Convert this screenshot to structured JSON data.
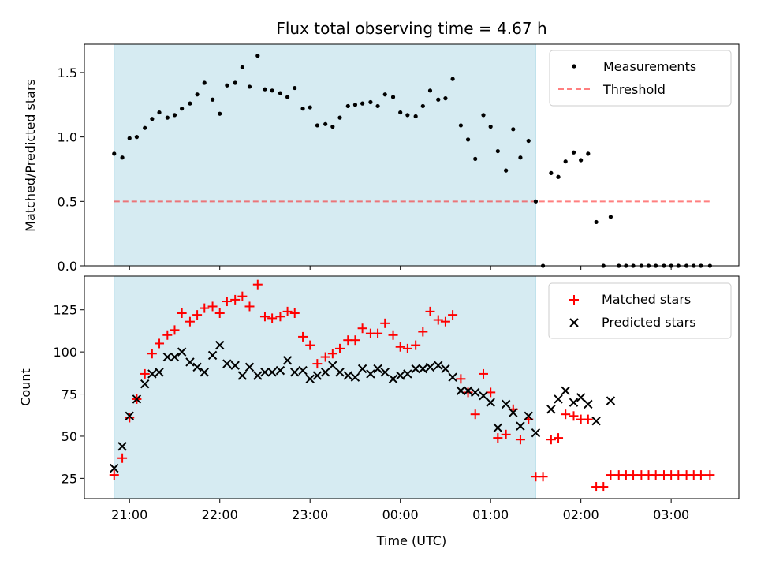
{
  "chart_data": {
    "type": "scatter",
    "title": "Flux total observing time = 4.67 h",
    "xlabel": "Time (UTC)",
    "x_ticks": [
      "21:00",
      "22:00",
      "23:00",
      "00:00",
      "01:00",
      "02:00",
      "03:00"
    ],
    "x_tick_hours": [
      21,
      22,
      23,
      24,
      25,
      26,
      27
    ],
    "xlim": [
      20.5,
      27.75
    ],
    "shaded_span": [
      20.83,
      25.5
    ],
    "colors": {
      "shade": "#add8e6",
      "threshold": "#ff0000",
      "matched": "#ff0000",
      "predicted": "#000000",
      "measurements": "#000000"
    },
    "panels": [
      {
        "id": "ratio",
        "ylabel": "Matched/Predicted stars",
        "ylim": [
          0,
          1.72
        ],
        "y_ticks": [
          0.0,
          0.5,
          1.0,
          1.5
        ],
        "y_tick_labels": [
          "0.0",
          "0.5",
          "1.0",
          "1.5"
        ],
        "legend": {
          "position": "top-right",
          "entries": [
            "Measurements",
            "Threshold"
          ]
        },
        "threshold": {
          "name": "Threshold",
          "y": 0.5,
          "x": [
            20.83,
            27.43
          ]
        },
        "series": [
          {
            "name": "Measurements",
            "marker": "dot",
            "points": [
              [
                20.83,
                0.87
              ],
              [
                20.92,
                0.84
              ],
              [
                21.0,
                0.99
              ],
              [
                21.08,
                1.0
              ],
              [
                21.17,
                1.07
              ],
              [
                21.25,
                1.14
              ],
              [
                21.33,
                1.19
              ],
              [
                21.42,
                1.15
              ],
              [
                21.5,
                1.17
              ],
              [
                21.58,
                1.22
              ],
              [
                21.67,
                1.26
              ],
              [
                21.75,
                1.33
              ],
              [
                21.83,
                1.42
              ],
              [
                21.92,
                1.29
              ],
              [
                22.0,
                1.18
              ],
              [
                22.08,
                1.4
              ],
              [
                22.17,
                1.42
              ],
              [
                22.25,
                1.54
              ],
              [
                22.33,
                1.39
              ],
              [
                22.42,
                1.63
              ],
              [
                22.5,
                1.37
              ],
              [
                22.58,
                1.36
              ],
              [
                22.67,
                1.34
              ],
              [
                22.75,
                1.31
              ],
              [
                22.83,
                1.38
              ],
              [
                22.92,
                1.22
              ],
              [
                23.0,
                1.23
              ],
              [
                23.08,
                1.09
              ],
              [
                23.17,
                1.1
              ],
              [
                23.25,
                1.08
              ],
              [
                23.33,
                1.15
              ],
              [
                23.42,
                1.24
              ],
              [
                23.5,
                1.25
              ],
              [
                23.58,
                1.26
              ],
              [
                23.67,
                1.27
              ],
              [
                23.75,
                1.24
              ],
              [
                23.83,
                1.33
              ],
              [
                23.92,
                1.31
              ],
              [
                24.0,
                1.19
              ],
              [
                24.08,
                1.17
              ],
              [
                24.17,
                1.16
              ],
              [
                24.25,
                1.24
              ],
              [
                24.33,
                1.36
              ],
              [
                24.42,
                1.29
              ],
              [
                24.5,
                1.3
              ],
              [
                24.58,
                1.45
              ],
              [
                24.67,
                1.09
              ],
              [
                24.75,
                0.98
              ],
              [
                24.83,
                0.83
              ],
              [
                24.92,
                1.17
              ],
              [
                25.0,
                1.08
              ],
              [
                25.08,
                0.89
              ],
              [
                25.17,
                0.74
              ],
              [
                25.25,
                1.06
              ],
              [
                25.33,
                0.84
              ],
              [
                25.42,
                0.97
              ],
              [
                25.5,
                0.5
              ],
              [
                25.58,
                0.0
              ],
              [
                25.67,
                0.72
              ],
              [
                25.75,
                0.69
              ],
              [
                25.83,
                0.81
              ],
              [
                25.92,
                0.88
              ],
              [
                26.0,
                0.82
              ],
              [
                26.08,
                0.87
              ],
              [
                26.17,
                0.34
              ],
              [
                26.25,
                0.0
              ],
              [
                26.33,
                0.38
              ],
              [
                26.42,
                0.0
              ],
              [
                26.5,
                0.0
              ],
              [
                26.58,
                0.0
              ],
              [
                26.67,
                0.0
              ],
              [
                26.75,
                0.0
              ],
              [
                26.83,
                0.0
              ],
              [
                26.92,
                0.0
              ],
              [
                27.0,
                0.0
              ],
              [
                27.08,
                0.0
              ],
              [
                27.17,
                0.0
              ],
              [
                27.25,
                0.0
              ],
              [
                27.33,
                0.0
              ],
              [
                27.43,
                0.0
              ]
            ]
          }
        ]
      },
      {
        "id": "counts",
        "ylabel": "Count",
        "ylim": [
          13,
          145
        ],
        "y_ticks": [
          25,
          50,
          75,
          100,
          125
        ],
        "y_tick_labels": [
          "25",
          "50",
          "75",
          "100",
          "125"
        ],
        "legend": {
          "position": "top-right",
          "entries": [
            "Matched stars",
            "Predicted stars"
          ]
        },
        "series": [
          {
            "name": "Matched stars",
            "marker": "plus",
            "points": [
              [
                20.83,
                27
              ],
              [
                20.92,
                37
              ],
              [
                21.0,
                61
              ],
              [
                21.08,
                72
              ],
              [
                21.17,
                87
              ],
              [
                21.25,
                99
              ],
              [
                21.33,
                105
              ],
              [
                21.42,
                110
              ],
              [
                21.5,
                113
              ],
              [
                21.58,
                123
              ],
              [
                21.67,
                118
              ],
              [
                21.75,
                122
              ],
              [
                21.83,
                126
              ],
              [
                21.92,
                127
              ],
              [
                22.0,
                123
              ],
              [
                22.08,
                130
              ],
              [
                22.17,
                131
              ],
              [
                22.25,
                133
              ],
              [
                22.33,
                127
              ],
              [
                22.42,
                140
              ],
              [
                22.5,
                121
              ],
              [
                22.58,
                120
              ],
              [
                22.67,
                121
              ],
              [
                22.75,
                124
              ],
              [
                22.83,
                123
              ],
              [
                22.92,
                109
              ],
              [
                23.0,
                104
              ],
              [
                23.08,
                93
              ],
              [
                23.17,
                97
              ],
              [
                23.25,
                99
              ],
              [
                23.33,
                102
              ],
              [
                23.42,
                107
              ],
              [
                23.5,
                107
              ],
              [
                23.58,
                114
              ],
              [
                23.67,
                111
              ],
              [
                23.75,
                111
              ],
              [
                23.83,
                117
              ],
              [
                23.92,
                110
              ],
              [
                24.0,
                103
              ],
              [
                24.08,
                102
              ],
              [
                24.17,
                104
              ],
              [
                24.25,
                112
              ],
              [
                24.33,
                124
              ],
              [
                24.42,
                119
              ],
              [
                24.5,
                118
              ],
              [
                24.58,
                122
              ],
              [
                24.67,
                84
              ],
              [
                24.75,
                76
              ],
              [
                24.83,
                63
              ],
              [
                24.92,
                87
              ],
              [
                25.0,
                76
              ],
              [
                25.08,
                49
              ],
              [
                25.17,
                51
              ],
              [
                25.25,
                66
              ],
              [
                25.33,
                48
              ],
              [
                25.42,
                60
              ],
              [
                25.5,
                26
              ],
              [
                25.58,
                26
              ],
              [
                25.67,
                48
              ],
              [
                25.75,
                49
              ],
              [
                25.83,
                63
              ],
              [
                25.92,
                62
              ],
              [
                26.0,
                60
              ],
              [
                26.08,
                60
              ],
              [
                26.17,
                20
              ],
              [
                26.25,
                20
              ],
              [
                26.33,
                27
              ],
              [
                26.42,
                27
              ],
              [
                26.5,
                27
              ],
              [
                26.58,
                27
              ],
              [
                26.67,
                27
              ],
              [
                26.75,
                27
              ],
              [
                26.83,
                27
              ],
              [
                26.92,
                27
              ],
              [
                27.0,
                27
              ],
              [
                27.08,
                27
              ],
              [
                27.17,
                27
              ],
              [
                27.25,
                27
              ],
              [
                27.33,
                27
              ],
              [
                27.43,
                27
              ]
            ]
          },
          {
            "name": "Predicted stars",
            "marker": "x",
            "points": [
              [
                20.83,
                31
              ],
              [
                20.92,
                44
              ],
              [
                21.0,
                62
              ],
              [
                21.08,
                72
              ],
              [
                21.17,
                81
              ],
              [
                21.25,
                87
              ],
              [
                21.33,
                88
              ],
              [
                21.42,
                97
              ],
              [
                21.5,
                97
              ],
              [
                21.58,
                100
              ],
              [
                21.67,
                94
              ],
              [
                21.75,
                91
              ],
              [
                21.83,
                88
              ],
              [
                21.92,
                98
              ],
              [
                22.0,
                104
              ],
              [
                22.08,
                93
              ],
              [
                22.17,
                92
              ],
              [
                22.25,
                86
              ],
              [
                22.33,
                91
              ],
              [
                22.42,
                86
              ],
              [
                22.5,
                88
              ],
              [
                22.58,
                88
              ],
              [
                22.67,
                89
              ],
              [
                22.75,
                95
              ],
              [
                22.83,
                88
              ],
              [
                22.92,
                89
              ],
              [
                23.0,
                84
              ],
              [
                23.08,
                86
              ],
              [
                23.17,
                88
              ],
              [
                23.25,
                92
              ],
              [
                23.33,
                88
              ],
              [
                23.42,
                86
              ],
              [
                23.5,
                85
              ],
              [
                23.58,
                90
              ],
              [
                23.67,
                87
              ],
              [
                23.75,
                90
              ],
              [
                23.83,
                88
              ],
              [
                23.92,
                84
              ],
              [
                24.0,
                86
              ],
              [
                24.08,
                87
              ],
              [
                24.17,
                90
              ],
              [
                24.25,
                90
              ],
              [
                24.33,
                91
              ],
              [
                24.42,
                92
              ],
              [
                24.5,
                90
              ],
              [
                24.58,
                85
              ],
              [
                24.67,
                77
              ],
              [
                24.75,
                77
              ],
              [
                24.83,
                76
              ],
              [
                24.92,
                74
              ],
              [
                25.0,
                70
              ],
              [
                25.08,
                55
              ],
              [
                25.17,
                69
              ],
              [
                25.25,
                64
              ],
              [
                25.33,
                56
              ],
              [
                25.42,
                62
              ],
              [
                25.5,
                52
              ],
              [
                25.67,
                66
              ],
              [
                25.75,
                72
              ],
              [
                25.83,
                77
              ],
              [
                25.92,
                70
              ],
              [
                26.0,
                73
              ],
              [
                26.08,
                69
              ],
              [
                26.17,
                59
              ],
              [
                26.33,
                71
              ]
            ]
          }
        ]
      }
    ]
  }
}
